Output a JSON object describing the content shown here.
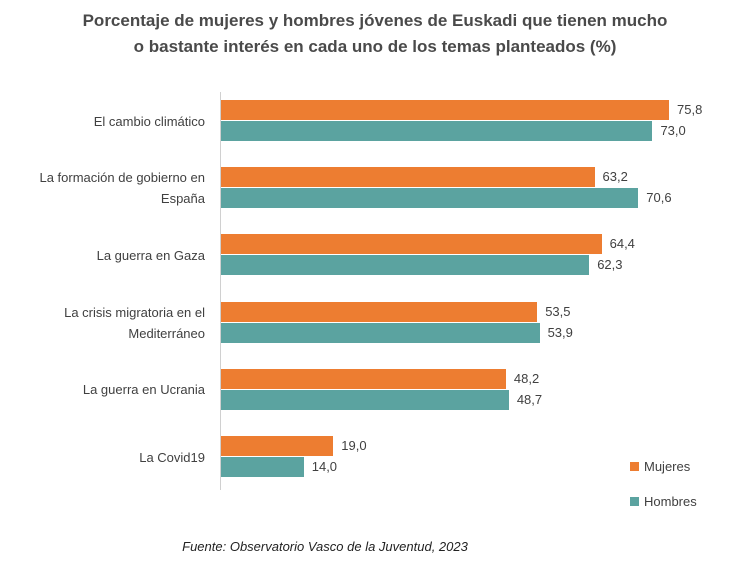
{
  "chart_data": {
    "type": "bar",
    "orientation": "horizontal",
    "title": "Porcentaje de mujeres y hombres jóvenes de Euskadi que tienen mucho o bastante interés en cada uno de los temas planteados (%)",
    "title_lines": [
      "Porcentaje de mujeres y hombres jóvenes de Euskadi que tienen mucho",
      "o bastante interés en cada uno de los temas planteados (%)"
    ],
    "categories": [
      "El cambio climático",
      "La formación de gobierno en España",
      "La guerra en Gaza",
      "La crisis migratoria en el Mediterráneo",
      "La guerra en Ucrania",
      "La Covid19"
    ],
    "series": [
      {
        "name": "Mujeres",
        "color": "#ED7D31",
        "values": [
          75.8,
          63.2,
          64.4,
          53.5,
          48.2,
          19.0
        ],
        "labels": [
          "75,8",
          "63,2",
          "64,4",
          "53,5",
          "48,2",
          "19,0"
        ]
      },
      {
        "name": "Hombres",
        "color": "#5BA3A0",
        "values": [
          73.0,
          70.6,
          62.3,
          53.9,
          48.7,
          14.0
        ],
        "labels": [
          "73,0",
          "70,6",
          "62,3",
          "53,9",
          "48,7",
          "14,0"
        ]
      }
    ],
    "xlim": [
      0,
      80
    ],
    "grid": false,
    "legend_position": "bottom-right",
    "source": "Fuente: Observatorio Vasco de la Juventud, 2023"
  }
}
